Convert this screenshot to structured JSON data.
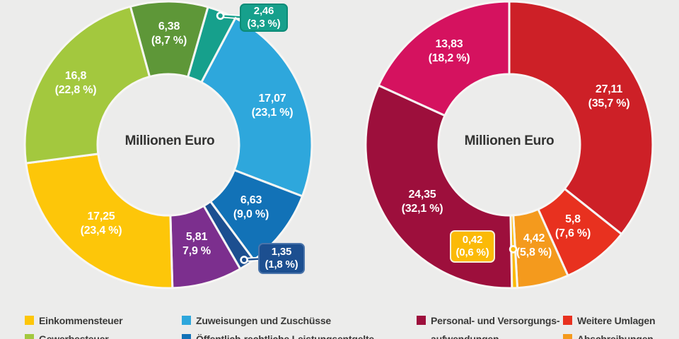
{
  "background_color": "#ECECEB",
  "chart_data": [
    {
      "type": "donut",
      "center_label": "Millionen Euro",
      "unit": "Millionen Euro",
      "start_angle_deg": 16,
      "slices": [
        {
          "name": "slice-2-46",
          "value": "2,46",
          "value_num": 2.46,
          "percent": "(3,3 %)",
          "percent_num": 3.3,
          "color": "#16A08C",
          "callout": true
        },
        {
          "name": "slice-17-07",
          "value": "17,07",
          "value_num": 17.07,
          "percent": "(23,1 %)",
          "percent_num": 23.1,
          "color": "#2EA7DC"
        },
        {
          "name": "slice-6-63",
          "value": "6,63",
          "value_num": 6.63,
          "percent": "(9,0 %)",
          "percent_num": 9.0,
          "color": "#1272B7"
        },
        {
          "name": "slice-1-35",
          "value": "1,35",
          "value_num": 1.35,
          "percent": "(1,8 %)",
          "percent_num": 1.8,
          "color": "#1C4F90",
          "callout": true
        },
        {
          "name": "slice-5-81",
          "value": "5,81",
          "value_num": 5.81,
          "percent": "7,9 %",
          "percent_num": 7.9,
          "color": "#7C2F8E"
        },
        {
          "name": "slice-17-25",
          "value": "17,25",
          "value_num": 17.25,
          "percent": "(23,4 %)",
          "percent_num": 23.4,
          "color": "#FDC609"
        },
        {
          "name": "slice-16-8",
          "value": "16,8",
          "value_num": 16.8,
          "percent": "(22,8 %)",
          "percent_num": 22.8,
          "color": "#A3C83E"
        },
        {
          "name": "slice-6-38",
          "value": "6,38",
          "value_num": 6.38,
          "percent": "(8,7 %)",
          "percent_num": 8.7,
          "color": "#5E9738"
        }
      ]
    },
    {
      "type": "donut",
      "center_label": "Millionen Euro",
      "unit": "Millionen Euro",
      "start_angle_deg": 0,
      "slices": [
        {
          "name": "slice-27-11",
          "value": "27,11",
          "value_num": 27.11,
          "percent": "(35,7 %)",
          "percent_num": 35.7,
          "color": "#CD2027"
        },
        {
          "name": "slice-5-8",
          "value": "5,8",
          "value_num": 5.8,
          "percent": "(7,6 %)",
          "percent_num": 7.6,
          "color": "#E8311F"
        },
        {
          "name": "slice-4-42",
          "value": "4,42",
          "value_num": 4.42,
          "percent": "(5,8 %)",
          "percent_num": 5.8,
          "color": "#F49A1D"
        },
        {
          "name": "slice-0-42",
          "value": "0,42",
          "value_num": 0.42,
          "percent": "(0,6 %)",
          "percent_num": 0.6,
          "color": "#FBBA07",
          "callout": true
        },
        {
          "name": "slice-24-35",
          "value": "24,35",
          "value_num": 24.35,
          "percent": "(32,1 %)",
          "percent_num": 32.1,
          "color": "#9D0F3C"
        },
        {
          "name": "slice-13-83",
          "value": "13,83",
          "value_num": 13.83,
          "percent": "(18,2 %)",
          "percent_num": 18.2,
          "color": "#D5125F"
        }
      ]
    }
  ],
  "legend": {
    "columns": [
      {
        "items": [
          {
            "label": "Einkommensteuer",
            "color": "#FDC609"
          },
          {
            "label": "Gewerbesteuer",
            "color": "#A3C83E"
          }
        ]
      },
      {
        "items": [
          {
            "label": "Zuweisungen und Zuschüsse",
            "color": "#2EA7DC"
          },
          {
            "label": "Öffentlich-rechtliche Leistungsentgelte",
            "color": "#1272B7"
          }
        ]
      },
      {
        "items": [
          {
            "label": "Personal- und Versorgungs-\naufwendungen",
            "color": "#9D0F3C"
          }
        ]
      },
      {
        "items": [
          {
            "label": "Weitere Umlagen",
            "color": "#E8311F"
          },
          {
            "label": "Abschreibungen",
            "color": "#F49A1D"
          }
        ]
      }
    ]
  }
}
